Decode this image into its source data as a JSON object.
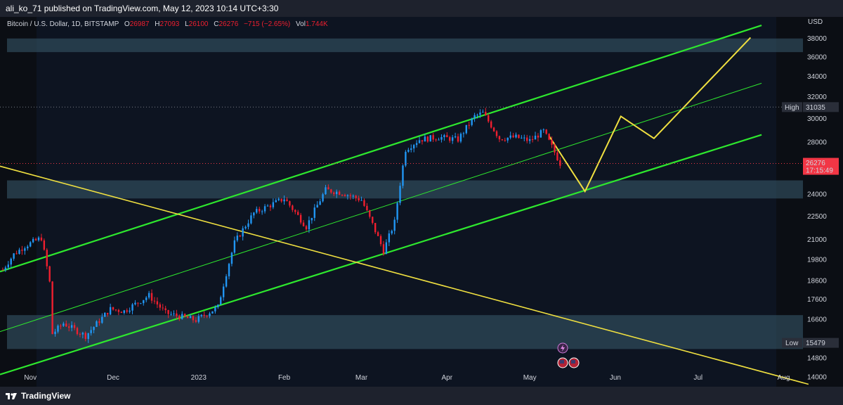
{
  "header": {
    "publish_line": "ali_ko_71 published on TradingView.com, May 12, 2023 10:14 UTC+3:30"
  },
  "footer": {
    "brand": "TradingView"
  },
  "legend": {
    "symbol": "Bitcoin / U.S. Dollar, 1D, BITSTAMP",
    "o_label": "O",
    "o_value": "26987",
    "h_label": "H",
    "h_value": "27093",
    "l_label": "L",
    "l_value": "26100",
    "c_label": "C",
    "c_value": "26276",
    "change": "−715 (−2.65%)",
    "vol_label": "Vol",
    "vol_value": "1.744K"
  },
  "colors": {
    "background": "#0b0e14",
    "up": "#2196f3",
    "down": "#ef1f2f",
    "channel": "#2ee82e",
    "trend_yellow": "#f0e040",
    "zone": "#3a5b6d",
    "price_badge": "#f23645"
  },
  "chart_data": {
    "type": "candlestick",
    "title": "Bitcoin / U.S. Dollar, 1D, BITSTAMP",
    "y_axis": {
      "currency": "USD",
      "scale": "log",
      "ticks": [
        14000,
        14800,
        15479,
        16600,
        17600,
        18600,
        19800,
        21000,
        22500,
        24000,
        26276,
        28000,
        30000,
        31035,
        32000,
        34000,
        36000,
        38000
      ],
      "ylim": [
        13600,
        40500
      ]
    },
    "x_axis": {
      "ticks": [
        {
          "label": "Nov",
          "date": "2022-11-01"
        },
        {
          "label": "Dec",
          "date": "2022-12-01"
        },
        {
          "label": "2023",
          "date": "2023-01-01"
        },
        {
          "label": "Feb",
          "date": "2023-02-01"
        },
        {
          "label": "Mar",
          "date": "2023-03-01"
        },
        {
          "label": "Apr",
          "date": "2023-04-01"
        },
        {
          "label": "May",
          "date": "2023-05-01"
        },
        {
          "label": "Jun",
          "date": "2023-06-01"
        },
        {
          "label": "Jul",
          "date": "2023-07-01"
        },
        {
          "label": "Aug",
          "date": "2023-08-01"
        }
      ],
      "xlim": [
        "2022-10-21",
        "2023-08-08"
      ]
    },
    "price_markers": {
      "high": {
        "label": "High",
        "value": "31035"
      },
      "low": {
        "label": "Low",
        "value": "15479"
      },
      "last": {
        "value": "26276",
        "countdown": "17:15:49"
      }
    },
    "closes": [
      {
        "date": "2022-10-22",
        "close": 19200
      },
      {
        "date": "2022-10-26",
        "close": 20100
      },
      {
        "date": "2022-10-30",
        "close": 20600
      },
      {
        "date": "2022-11-05",
        "close": 21100
      },
      {
        "date": "2022-11-08",
        "close": 18500
      },
      {
        "date": "2022-11-09",
        "close": 15900
      },
      {
        "date": "2022-11-13",
        "close": 16400
      },
      {
        "date": "2022-11-21",
        "close": 15800
      },
      {
        "date": "2022-11-30",
        "close": 17100
      },
      {
        "date": "2022-12-05",
        "close": 17000
      },
      {
        "date": "2022-12-14",
        "close": 17800
      },
      {
        "date": "2022-12-20",
        "close": 16900
      },
      {
        "date": "2022-12-31",
        "close": 16550
      },
      {
        "date": "2023-01-08",
        "close": 17200
      },
      {
        "date": "2023-01-14",
        "close": 20800
      },
      {
        "date": "2023-01-21",
        "close": 22700
      },
      {
        "date": "2023-02-01",
        "close": 23700
      },
      {
        "date": "2023-02-09",
        "close": 21800
      },
      {
        "date": "2023-02-16",
        "close": 24300
      },
      {
        "date": "2023-02-22",
        "close": 24100
      },
      {
        "date": "2023-03-01",
        "close": 23600
      },
      {
        "date": "2023-03-09",
        "close": 20300
      },
      {
        "date": "2023-03-13",
        "close": 22100
      },
      {
        "date": "2023-03-17",
        "close": 27400
      },
      {
        "date": "2023-03-22",
        "close": 28200
      },
      {
        "date": "2023-03-29",
        "close": 28400
      },
      {
        "date": "2023-04-05",
        "close": 28200
      },
      {
        "date": "2023-04-11",
        "close": 30200
      },
      {
        "date": "2023-04-14",
        "close": 30500
      },
      {
        "date": "2023-04-20",
        "close": 28300
      },
      {
        "date": "2023-04-26",
        "close": 28400
      },
      {
        "date": "2023-05-01",
        "close": 28100
      },
      {
        "date": "2023-05-06",
        "close": 28900
      },
      {
        "date": "2023-05-09",
        "close": 27600
      },
      {
        "date": "2023-05-12",
        "close": 26276
      }
    ],
    "channel": {
      "upper": [
        {
          "date": "2022-10-21",
          "value": 19100
        },
        {
          "date": "2023-07-24",
          "value": 39500
        }
      ],
      "middle": [
        {
          "date": "2022-10-21",
          "value": 16000
        },
        {
          "date": "2023-07-24",
          "value": 33300
        }
      ],
      "lower": [
        {
          "date": "2022-10-21",
          "value": 14100
        },
        {
          "date": "2023-07-24",
          "value": 28600
        }
      ]
    },
    "descending_trendline": [
      {
        "date": "2022-09-25",
        "value": 27600
      },
      {
        "date": "2023-08-10",
        "value": 13700
      }
    ],
    "forecast_path": [
      {
        "date": "2023-05-08",
        "value": 28500
      },
      {
        "date": "2023-05-21",
        "value": 24200
      },
      {
        "date": "2023-06-03",
        "value": 30200
      },
      {
        "date": "2023-06-15",
        "value": 28300
      },
      {
        "date": "2023-07-20",
        "value": 38100
      }
    ],
    "zones": [
      {
        "top": 38000,
        "bottom": 36500
      },
      {
        "top": 25000,
        "bottom": 23700
      },
      {
        "top": 16800,
        "bottom": 15200
      }
    ]
  }
}
